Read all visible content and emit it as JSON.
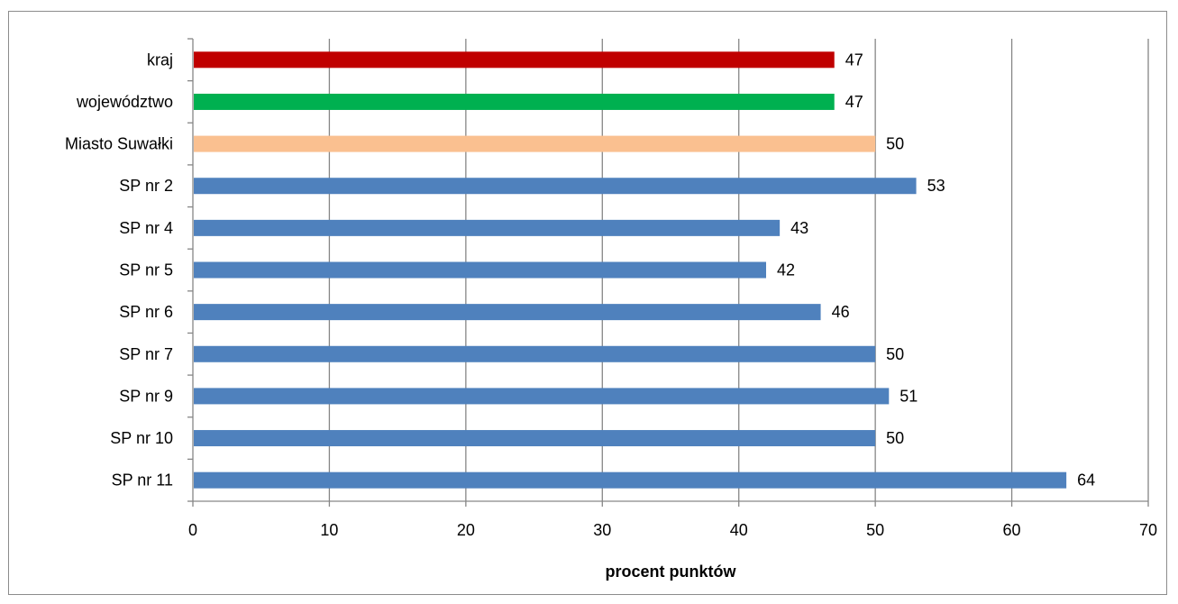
{
  "chart_data": {
    "type": "bar",
    "orientation": "horizontal",
    "categories": [
      "kraj",
      "województwo",
      "Miasto Suwałki",
      "SP nr 2",
      "SP nr 4",
      "SP nr 5",
      "SP nr 6",
      "SP nr 7",
      "SP nr 9",
      "SP nr 10",
      "SP nr 11"
    ],
    "values": [
      47,
      47,
      50,
      53,
      43,
      42,
      46,
      50,
      51,
      50,
      64
    ],
    "bar_colors": [
      "#c00000",
      "#00b050",
      "#fac090",
      "#4f81bd",
      "#4f81bd",
      "#4f81bd",
      "#4f81bd",
      "#4f81bd",
      "#4f81bd",
      "#4f81bd",
      "#4f81bd"
    ],
    "xlabel": "procent punktów",
    "ylabel": "",
    "title": "",
    "xlim": [
      0,
      70
    ],
    "x_ticks": [
      0,
      10,
      20,
      30,
      40,
      50,
      60,
      70
    ],
    "grid": "vertical",
    "grid_color": "#868686",
    "data_labels": true,
    "legend": "none"
  }
}
